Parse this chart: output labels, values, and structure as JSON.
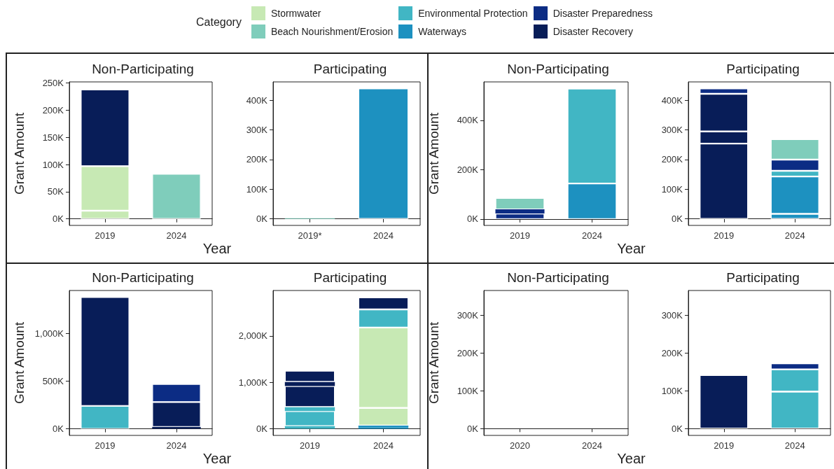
{
  "chart_data": [
    {
      "type": "bar",
      "title": "Non-Participating",
      "xlabel": "Year",
      "ylabel": "Grant Amount",
      "legend": "top",
      "legend_title": "Category",
      "stacked": true,
      "categories": [
        "2019",
        "2024"
      ],
      "ylim": [
        -12,
        252
      ],
      "yticks": [
        {
          "value": 0,
          "label": "0K"
        },
        {
          "value": 50,
          "label": "50K"
        },
        {
          "value": 100,
          "label": "100K"
        },
        {
          "value": 150,
          "label": "150K"
        },
        {
          "value": 200,
          "label": "200K"
        },
        {
          "value": 250,
          "label": "250K"
        }
      ],
      "series": [
        {
          "name": "Stormwater",
          "color": "#c7e9b4",
          "values": [
            15,
            null
          ]
        },
        {
          "color": "#c7e9b4",
          "values": [
            82,
            null
          ]
        },
        {
          "name": "Beach Nourishment/Erosion",
          "color": "#7fcdbb",
          "values": [
            null,
            83
          ]
        },
        {
          "name": "Disaster Recovery",
          "color": "#081d58",
          "values": [
            141,
            null
          ]
        }
      ]
    },
    {
      "type": "bar",
      "title": "Participating",
      "legend": "top",
      "stacked": true,
      "categories": [
        "2019*",
        "2024"
      ],
      "ylim": [
        -22,
        462
      ],
      "yticks": [
        {
          "value": 0,
          "label": "0K"
        },
        {
          "value": 100,
          "label": "100K"
        },
        {
          "value": 200,
          "label": "200K"
        },
        {
          "value": 300,
          "label": "300K"
        },
        {
          "value": 400,
          "label": "400K"
        }
      ],
      "series": [
        {
          "name": "Beach Nourishment/Erosion",
          "color": "#7fcdbb",
          "values": [
            2,
            null
          ]
        },
        {
          "name": "Waterways",
          "color": "#1d91c0",
          "values": [
            null,
            440
          ]
        }
      ]
    },
    {
      "type": "bar",
      "title": "Non-Participating",
      "xlabel": "Year",
      "ylabel": "Grant Amount",
      "legend": "top",
      "stacked": true,
      "categories": [
        "2019",
        "2024"
      ],
      "ylim": [
        -26,
        556
      ],
      "yticks": [
        {
          "value": 0,
          "label": "0K"
        },
        {
          "value": 200,
          "label": "200K"
        },
        {
          "value": 400,
          "label": "400K"
        }
      ],
      "series": [
        {
          "name": "Disaster Preparedness",
          "color": "#0c2c84",
          "values": [
            22,
            null
          ]
        },
        {
          "color": "#0c2c84",
          "values": [
            17,
            null
          ]
        },
        {
          "name": "Beach Nourishment/Erosion",
          "color": "#7fcdbb",
          "values": [
            46,
            null
          ]
        },
        {
          "name": "Waterways",
          "color": "#1d91c0",
          "values": [
            null,
            144
          ]
        },
        {
          "name": "Environmental Protection",
          "color": "#41b6c4",
          "values": [
            null,
            385
          ]
        }
      ]
    },
    {
      "type": "bar",
      "title": "Participating",
      "legend": "top",
      "stacked": true,
      "categories": [
        "2019",
        "2024"
      ],
      "ylim": [
        -22,
        462
      ],
      "yticks": [
        {
          "value": 0,
          "label": "0K"
        },
        {
          "value": 100,
          "label": "100K"
        },
        {
          "value": 200,
          "label": "200K"
        },
        {
          "value": 300,
          "label": "300K"
        },
        {
          "value": 400,
          "label": "400K"
        }
      ],
      "series": [
        {
          "name": "Disaster Recovery",
          "color": "#081d58",
          "values": [
            254,
            null
          ]
        },
        {
          "color": "#081d58",
          "values": [
            41,
            null
          ]
        },
        {
          "color": "#081d58",
          "values": [
            127,
            null
          ]
        },
        {
          "name": "Disaster Preparedness",
          "color": "#0c2c84",
          "values": [
            18,
            null
          ]
        },
        {
          "name": "Waterways",
          "color": "#1d91c0",
          "values": [
            null,
            17
          ]
        },
        {
          "color": "#1d91c0",
          "values": [
            null,
            126
          ]
        },
        {
          "name": "Environmental Protection",
          "color": "#41b6c4",
          "values": [
            null,
            19
          ]
        },
        {
          "name": "Disaster Preparedness",
          "color": "#0c2c84",
          "values": [
            null,
            38
          ]
        },
        {
          "name": "Beach Nourishment/Erosion",
          "color": "#7fcdbb",
          "values": [
            null,
            69
          ]
        }
      ]
    },
    {
      "type": "bar",
      "title": "Non-Participating",
      "xlabel": "Year",
      "ylabel": "Grant Amount",
      "legend": "top",
      "stacked": true,
      "categories": [
        "2019",
        "2024"
      ],
      "ylim": [
        -69,
        1449
      ],
      "yticks": [
        {
          "value": 0,
          "label": "0K"
        },
        {
          "value": 500,
          "label": "500K"
        },
        {
          "value": 1000,
          "label": "1,000K"
        }
      ],
      "series": [
        {
          "name": "Environmental Protection",
          "color": "#41b6c4",
          "values": [
            240,
            null
          ]
        },
        {
          "name": "Disaster Recovery",
          "color": "#081d58",
          "values": [
            1140,
            null
          ]
        },
        {
          "color": "#081d58",
          "values": [
            null,
            20
          ]
        },
        {
          "color": "#081d58",
          "values": [
            null,
            260
          ]
        },
        {
          "name": "Disaster Preparedness",
          "color": "#0c2c84",
          "values": [
            null,
            190
          ]
        }
      ]
    },
    {
      "type": "bar",
      "title": "Participating",
      "legend": "top",
      "stacked": true,
      "categories": [
        "2019",
        "2024"
      ],
      "ylim": [
        -142,
        2977
      ],
      "yticks": [
        {
          "value": 0,
          "label": "0K"
        },
        {
          "value": 1000,
          "label": "1,000K"
        },
        {
          "value": 2000,
          "label": "2,000K"
        }
      ],
      "series": [
        {
          "name": "Environmental Protection",
          "color": "#41b6c4",
          "values": [
            60,
            null
          ]
        },
        {
          "color": "#41b6c4",
          "values": [
            320,
            null
          ]
        },
        {
          "color": "#41b6c4",
          "values": [
            90,
            null
          ]
        },
        {
          "name": "Disaster Recovery",
          "color": "#081d58",
          "values": [
            450,
            null
          ]
        },
        {
          "color": "#081d58",
          "values": [
            90,
            null
          ]
        },
        {
          "color": "#081d58",
          "values": [
            240,
            null
          ]
        },
        {
          "name": "Waterways",
          "color": "#1d91c0",
          "values": [
            null,
            30
          ]
        },
        {
          "color": "#1d91c0",
          "values": [
            null,
            40
          ]
        },
        {
          "name": "Stormwater",
          "color": "#c7e9b4",
          "values": [
            null,
            380
          ]
        },
        {
          "color": "#c7e9b4",
          "values": [
            null,
            1730
          ]
        },
        {
          "color": "#41b6c4",
          "values": [
            null,
            390
          ]
        },
        {
          "color": "#081d58",
          "values": [
            null,
            260
          ]
        }
      ]
    },
    {
      "type": "bar",
      "title": "Non-Participating",
      "xlabel": "Year",
      "ylabel": "Grant Amount",
      "categories": [
        "2020",
        "2024"
      ],
      "ylim": [
        -18,
        366
      ],
      "yticks": [
        {
          "value": 0,
          "label": "0K"
        },
        {
          "value": 100,
          "label": "100K"
        },
        {
          "value": 200,
          "label": "200K"
        },
        {
          "value": 300,
          "label": "300K"
        }
      ]
    },
    {
      "type": "bar",
      "title": "Participating",
      "legend": "top",
      "stacked": true,
      "categories": [
        "2019",
        "2024"
      ],
      "ylim": [
        -18,
        366
      ],
      "yticks": [
        {
          "value": 0,
          "label": "0K"
        },
        {
          "value": 100,
          "label": "100K"
        },
        {
          "value": 200,
          "label": "200K"
        },
        {
          "value": 300,
          "label": "300K"
        }
      ],
      "series": [
        {
          "name": "Disaster Recovery",
          "color": "#081d58",
          "values": [
            142,
            null
          ]
        },
        {
          "name": "Environmental Protection",
          "color": "#41b6c4",
          "values": [
            null,
            98
          ]
        },
        {
          "color": "#41b6c4",
          "values": [
            null,
            59
          ]
        },
        {
          "name": "Disaster Preparedness",
          "color": "#0c2c84",
          "values": [
            null,
            16
          ]
        }
      ]
    }
  ]
}
